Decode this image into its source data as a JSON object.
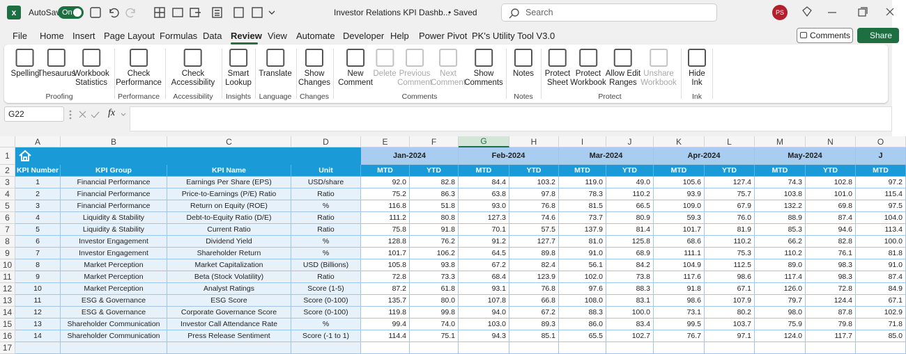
{
  "titlebar": {
    "autosave": "AutoSave",
    "toggle": "On",
    "filename": "Investor Relations KPI Dashb...",
    "status": "• Saved",
    "search": "Search",
    "avatar": "PS"
  },
  "menu": {
    "tabs": [
      "File",
      "Home",
      "Insert",
      "Page Layout",
      "Formulas",
      "Data",
      "Review",
      "View",
      "Automate",
      "Developer",
      "Help",
      "Power Pivot",
      "PK's Utility Tool V3.0"
    ],
    "comments": "Comments",
    "share": "Share"
  },
  "ribbon": {
    "groups": [
      {
        "name": "Proofing",
        "buttons": [
          {
            "lines": [
              "Spelling"
            ]
          },
          {
            "lines": [
              "Thesaurus"
            ]
          },
          {
            "lines": [
              "Workbook",
              "Statistics"
            ]
          }
        ]
      },
      {
        "name": "Performance",
        "buttons": [
          {
            "lines": [
              "Check",
              "Performance"
            ]
          }
        ]
      },
      {
        "name": "Accessibility",
        "buttons": [
          {
            "lines": [
              "Check",
              "Accessibility"
            ]
          }
        ]
      },
      {
        "name": "Insights",
        "buttons": [
          {
            "lines": [
              "Smart",
              "Lookup"
            ]
          }
        ]
      },
      {
        "name": "Language",
        "buttons": [
          {
            "lines": [
              "Translate"
            ]
          }
        ]
      },
      {
        "name": "Changes",
        "buttons": [
          {
            "lines": [
              "Show",
              "Changes"
            ]
          }
        ]
      },
      {
        "name": "Comments",
        "buttons": [
          {
            "lines": [
              "New",
              "Comment"
            ]
          },
          {
            "lines": [
              "Delete"
            ],
            "enabled": false
          },
          {
            "lines": [
              "Previous",
              "Comment"
            ],
            "enabled": false
          },
          {
            "lines": [
              "Next",
              "Comment"
            ],
            "enabled": false
          },
          {
            "lines": [
              "Show",
              "Comments"
            ]
          }
        ]
      },
      {
        "name": "Notes",
        "buttons": [
          {
            "lines": [
              "Notes"
            ]
          }
        ]
      },
      {
        "name": "Protect",
        "buttons": [
          {
            "lines": [
              "Protect",
              "Sheet"
            ]
          },
          {
            "lines": [
              "Protect",
              "Workbook"
            ]
          },
          {
            "lines": [
              "Allow Edit",
              "Ranges"
            ]
          },
          {
            "lines": [
              "Unshare",
              "Workbook"
            ],
            "enabled": false
          }
        ]
      },
      {
        "name": "Ink",
        "buttons": [
          {
            "lines": [
              "Hide",
              "Ink"
            ]
          }
        ]
      }
    ]
  },
  "formula_bar": {
    "name_box": "G22",
    "fx": "fx"
  },
  "sheet": {
    "columns": [
      "A",
      "B",
      "C",
      "D",
      "E",
      "F",
      "G",
      "H",
      "I",
      "J",
      "K",
      "L",
      "M",
      "N",
      "O"
    ],
    "rows": [
      "1",
      "2",
      "3",
      "4",
      "5",
      "6",
      "7",
      "8",
      "9",
      "10",
      "11",
      "12",
      "13",
      "14",
      "15",
      "16",
      "17"
    ],
    "months": [
      "Jan-2024",
      "Feb-2024",
      "Mar-2024",
      "Apr-2024",
      "May-2024",
      "J"
    ],
    "header": [
      "KPI Number",
      "KPI Group",
      "KPI Name",
      "Unit",
      "MTD",
      "YTD",
      "MTD",
      "YTD",
      "MTD",
      "YTD",
      "MTD",
      "YTD",
      "MTD",
      "YTD",
      "MTD"
    ],
    "data": [
      [
        "1",
        "Financial Performance",
        "Earnings Per Share (EPS)",
        "USD/share",
        "92.0",
        "82.8",
        "84.4",
        "103.2",
        "119.0",
        "49.0",
        "105.6",
        "127.4",
        "74.3",
        "102.8",
        "97.2"
      ],
      [
        "2",
        "Financial Performance",
        "Price-to-Earnings (P/E) Ratio",
        "Ratio",
        "75.2",
        "86.3",
        "63.8",
        "97.8",
        "78.3",
        "110.2",
        "93.9",
        "75.7",
        "103.8",
        "101.0",
        "115.4"
      ],
      [
        "3",
        "Financial Performance",
        "Return on Equity (ROE)",
        "%",
        "116.8",
        "51.8",
        "93.0",
        "76.8",
        "81.5",
        "66.5",
        "109.0",
        "67.9",
        "132.2",
        "69.8",
        "97.5"
      ],
      [
        "4",
        "Liquidity & Stability",
        "Debt-to-Equity Ratio (D/E)",
        "Ratio",
        "111.2",
        "80.8",
        "127.3",
        "74.6",
        "73.7",
        "80.9",
        "59.3",
        "76.0",
        "88.9",
        "87.4",
        "104.0"
      ],
      [
        "5",
        "Liquidity & Stability",
        "Current Ratio",
        "Ratio",
        "75.8",
        "91.8",
        "70.1",
        "57.5",
        "137.9",
        "81.4",
        "101.7",
        "81.9",
        "85.3",
        "94.6",
        "113.4"
      ],
      [
        "6",
        "Investor Engagement",
        "Dividend Yield",
        "%",
        "128.8",
        "76.2",
        "91.2",
        "127.7",
        "81.0",
        "125.8",
        "68.6",
        "110.2",
        "66.2",
        "82.8",
        "100.0"
      ],
      [
        "7",
        "Investor Engagement",
        "Shareholder Return",
        "%",
        "101.7",
        "106.2",
        "64.5",
        "89.8",
        "91.0",
        "68.9",
        "111.1",
        "75.3",
        "110.2",
        "76.1",
        "81.8"
      ],
      [
        "8",
        "Market Perception",
        "Market Capitalization",
        "USD (Billions)",
        "105.8",
        "93.8",
        "67.2",
        "82.4",
        "56.1",
        "84.2",
        "104.9",
        "112.5",
        "89.0",
        "98.3",
        "91.0"
      ],
      [
        "9",
        "Market Perception",
        "Beta (Stock Volatility)",
        "Ratio",
        "72.8",
        "73.3",
        "68.4",
        "123.9",
        "102.0",
        "73.8",
        "117.6",
        "98.6",
        "117.4",
        "98.3",
        "87.4"
      ],
      [
        "10",
        "Market Perception",
        "Analyst Ratings",
        "Score (1-5)",
        "87.2",
        "61.8",
        "93.1",
        "76.8",
        "97.6",
        "88.3",
        "91.8",
        "67.1",
        "126.0",
        "72.8",
        "84.9"
      ],
      [
        "11",
        "ESG & Governance",
        "ESG Score",
        "Score (0-100)",
        "135.7",
        "80.0",
        "107.8",
        "66.8",
        "108.0",
        "83.1",
        "98.6",
        "107.9",
        "79.7",
        "124.4",
        "67.1"
      ],
      [
        "12",
        "ESG & Governance",
        "Corporate Governance Score",
        "Score (0-100)",
        "119.8",
        "99.8",
        "94.0",
        "67.2",
        "88.3",
        "100.0",
        "73.1",
        "80.2",
        "98.0",
        "87.8",
        "102.9"
      ],
      [
        "13",
        "Shareholder Communication",
        "Investor Call Attendance Rate",
        "%",
        "99.4",
        "74.0",
        "103.0",
        "89.3",
        "86.0",
        "83.4",
        "99.5",
        "103.7",
        "75.9",
        "79.8",
        "71.8"
      ],
      [
        "14",
        "Shareholder Communication",
        "Press Release Sentiment",
        "Score (-1 to 1)",
        "114.4",
        "75.1",
        "94.3",
        "85.1",
        "65.5",
        "102.7",
        "76.7",
        "97.1",
        "124.0",
        "117.7",
        "85.0"
      ]
    ]
  }
}
